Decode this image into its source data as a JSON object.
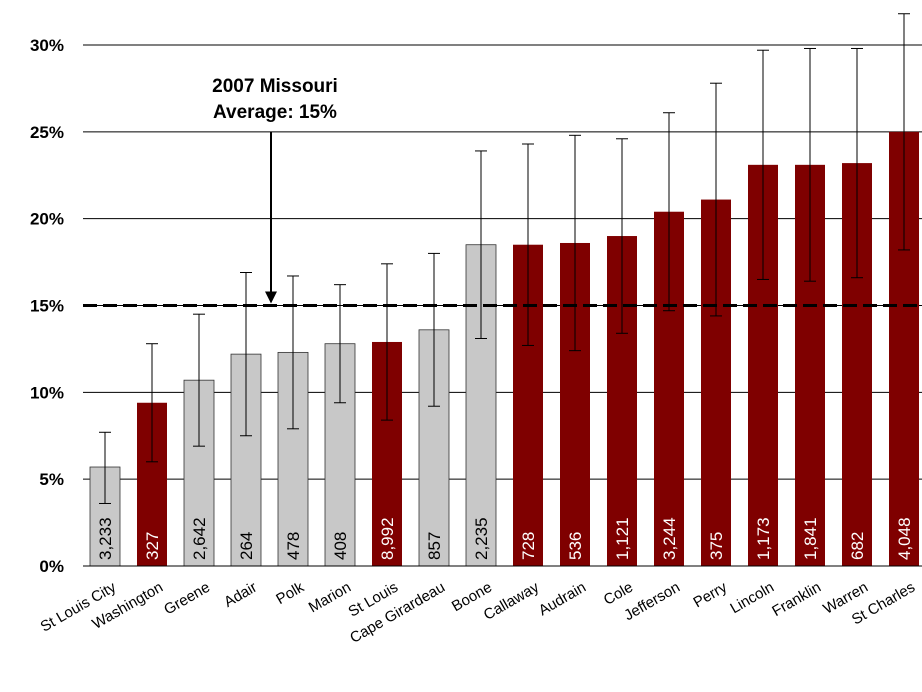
{
  "chart_data": {
    "type": "bar",
    "title": "",
    "xlabel": "",
    "ylabel": "",
    "ylim": [
      0,
      30
    ],
    "ytick_values": [
      0,
      5,
      10,
      15,
      20,
      25,
      30
    ],
    "ytick_labels": [
      "0%",
      "5%",
      "10%",
      "15%",
      "20%",
      "25%",
      "30%"
    ],
    "grid": true,
    "categories": [
      "St Louis City",
      "Washington",
      "Greene",
      "Adair",
      "Polk",
      "Marion",
      "St Louis",
      "Cape Girardeau",
      "Boone",
      "Callaway",
      "Audrain",
      "Cole",
      "Jefferson",
      "Perry",
      "Lincoln",
      "Franklin",
      "Warren",
      "St Charles"
    ],
    "values": [
      5.7,
      9.4,
      10.7,
      12.2,
      12.3,
      12.8,
      12.9,
      13.6,
      18.5,
      18.5,
      18.6,
      19.0,
      20.4,
      21.1,
      23.1,
      23.1,
      23.2,
      25.0
    ],
    "error_low": [
      3.6,
      6.0,
      6.9,
      7.5,
      7.9,
      9.4,
      8.4,
      9.2,
      13.1,
      12.7,
      12.4,
      13.4,
      14.7,
      14.4,
      16.5,
      16.4,
      16.6,
      18.2
    ],
    "error_high": [
      7.7,
      12.8,
      14.5,
      16.9,
      16.7,
      16.2,
      17.4,
      18.0,
      23.9,
      24.3,
      24.8,
      24.6,
      26.1,
      27.8,
      29.7,
      29.8,
      29.8,
      31.8
    ],
    "bar_labels": [
      "3,233",
      "327",
      "2,642",
      "264",
      "478",
      "408",
      "8,992",
      "857",
      "2,235",
      "728",
      "536",
      "1,121",
      "3,244",
      "375",
      "1,173",
      "1,841",
      "682",
      "4,048"
    ],
    "highlighted": [
      false,
      true,
      false,
      false,
      false,
      false,
      true,
      false,
      false,
      true,
      true,
      true,
      true,
      true,
      true,
      true,
      true,
      true
    ],
    "colors": {
      "highlight": "#7f0000",
      "normal": "#c8c8c8",
      "gridline": "#000000",
      "reference_line": "#000000"
    },
    "reference_line": {
      "value": 15,
      "label_line1": "2007 Missouri",
      "label_line2": "Average: 15%"
    }
  }
}
